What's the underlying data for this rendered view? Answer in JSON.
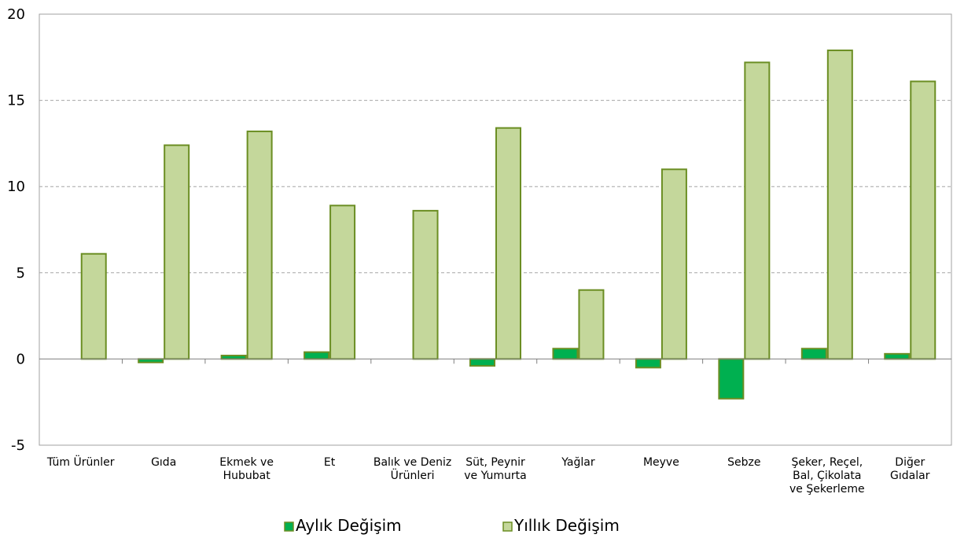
{
  "chart_data": {
    "type": "bar",
    "categories": [
      [
        "Tüm Ürünler"
      ],
      [
        "Gıda"
      ],
      [
        "Ekmek ve",
        "Hububat"
      ],
      [
        "Et"
      ],
      [
        "Balık ve Deniz",
        "Ürünleri"
      ],
      [
        "Süt, Peynir",
        "ve Yumurta"
      ],
      [
        "Yağlar"
      ],
      [
        "Meyve"
      ],
      [
        "Sebze"
      ],
      [
        "Şeker, Reçel,",
        "Bal, Çikolata",
        "ve Şekerleme"
      ],
      [
        "Diğer",
        "Gıdalar"
      ]
    ],
    "series": [
      {
        "name": "Aylık Değişim",
        "color": "#00b050",
        "values": [
          0.0,
          -0.2,
          0.2,
          0.4,
          0.0,
          -0.4,
          0.6,
          -0.5,
          -2.3,
          0.6,
          0.3
        ]
      },
      {
        "name": "Yıllık Değişim",
        "color": "#c4d79b",
        "values": [
          6.1,
          12.4,
          13.2,
          8.9,
          8.6,
          13.4,
          4.0,
          11.0,
          17.2,
          17.9,
          16.1
        ]
      }
    ],
    "bar_stroke": "#6b8e23",
    "ylim": [
      -5,
      20
    ],
    "yticks": [
      -5,
      0,
      5,
      10,
      15,
      20
    ],
    "grid": true,
    "legend_position": "bottom-center",
    "title": "",
    "xlabel": "",
    "ylabel": ""
  }
}
